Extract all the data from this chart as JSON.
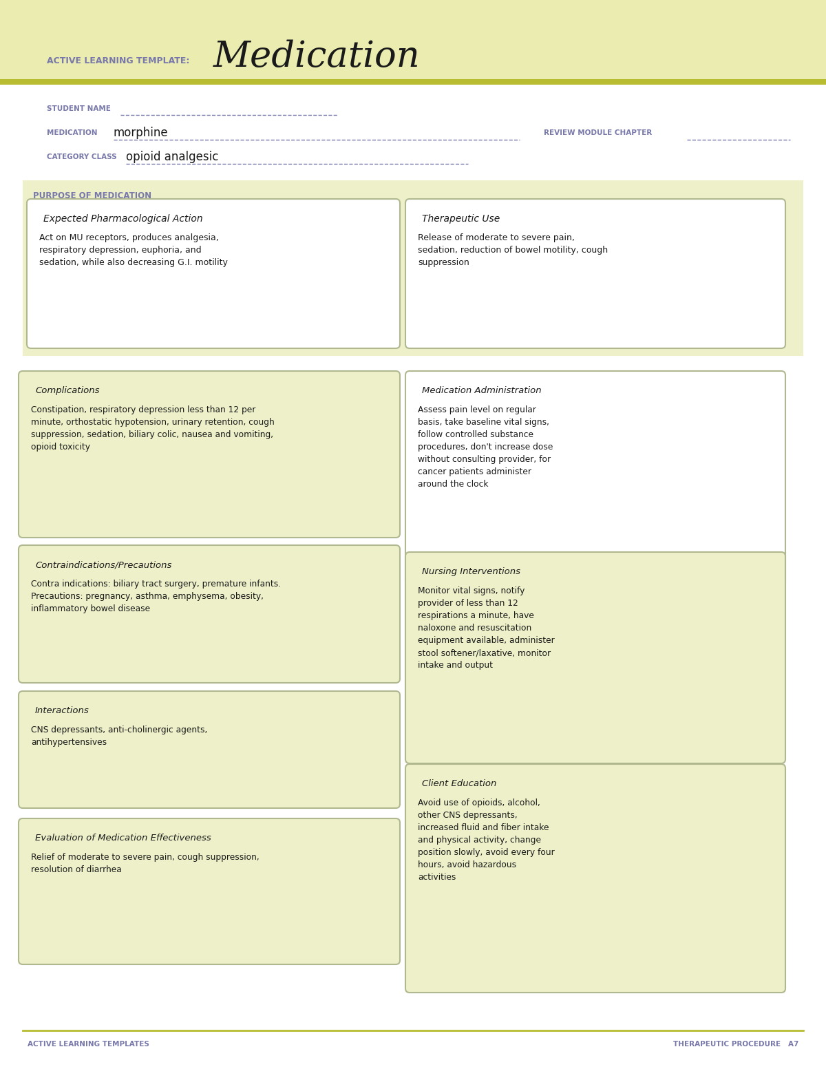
{
  "page_bg": "#ffffff",
  "header_bg": "#eaecb0",
  "header_line_color": "#b8bc30",
  "box_bg_green": "#edf0c8",
  "box_bg_white": "#ffffff",
  "box_border": "#b0b890",
  "title_label": "ACTIVE LEARNING TEMPLATE:",
  "title_main": "Medication",
  "label_color": "#7878aa",
  "dark_text": "#1a1a1a",
  "student_name_label": "STUDENT NAME",
  "medication_label": "MEDICATION",
  "medication_value": "morphine",
  "review_label": "REVIEW MODULE CHAPTER",
  "category_label": "CATEGORY CLASS",
  "category_value": "opioid analgesic",
  "purpose_label": "PURPOSE OF MEDICATION",
  "box1_title": "Expected Pharmacological Action",
  "box1_body": "Act on MU receptors, produces analgesia,\nrespiratory depression, euphoria, and\nsedation, while also decreasing G.I. motility",
  "box2_title": "Therapeutic Use",
  "box2_body": "Release of moderate to severe pain,\nsedation, reduction of bowel motility, cough\nsuppression",
  "box3_title": "Complications",
  "box3_body": "Constipation, respiratory depression less than 12 per\nminute, orthostatic hypotension, urinary retention, cough\nsuppression, sedation, biliary colic, nausea and vomiting,\nopioid toxicity",
  "box4_title": "Medication Administration",
  "box4_body": "Assess pain level on regular\nbasis, take baseline vital signs,\nfollow controlled substance\nprocedures, don't increase dose\nwithout consulting provider, for\ncancer patients administer\naround the clock",
  "box5_title": "Contraindications/Precautions",
  "box5_body": "Contra indications: biliary tract surgery, premature infants.\nPrecautions: pregnancy, asthma, emphysema, obesity,\ninflammatory bowel disease",
  "box6_title": "Nursing Interventions",
  "box6_body": "Monitor vital signs, notify\nprovider of less than 12\nrespirations a minute, have\nnaloxone and resuscitation\nequipment available, administer\nstool softener/laxative, monitor\nintake and output",
  "box7_title": "Interactions",
  "box7_body": "CNS depressants, anti-cholinergic agents,\nantihypertensives",
  "box8_title": "Client Education",
  "box8_body": "Avoid use of opioids, alcohol,\nother CNS depressants,\nincreased fluid and fiber intake\nand physical activity, change\nposition slowly, avoid every four\nhours, avoid hazardous\nactivities",
  "box9_title": "Evaluation of Medication Effectiveness",
  "box9_body": "Relief of moderate to severe pain, cough suppression,\nresolution of diarrhea",
  "footer_left": "ACTIVE LEARNING TEMPLATES",
  "footer_right": "THERAPEUTIC PROCEDURE   A7"
}
